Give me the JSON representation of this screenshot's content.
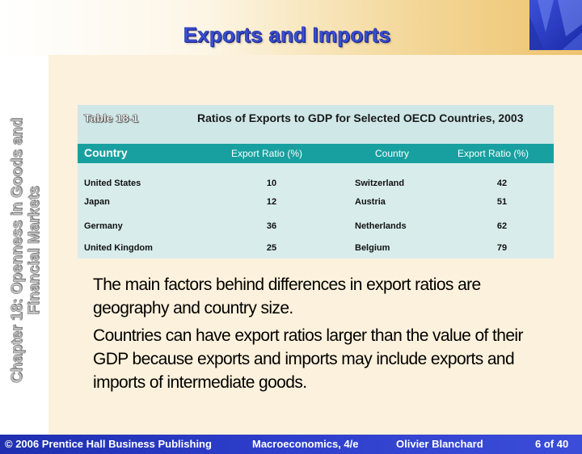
{
  "slide": {
    "title": "Exports and Imports",
    "side_title_line1": "Chapter 18: Openness in Goods and",
    "side_title_line2": "Financial Markets"
  },
  "table": {
    "label": "Table 18-1",
    "caption": "Ratios of Exports to GDP for Selected OECD Countries, 2003",
    "headers": [
      "Country",
      "Export Ratio (%)",
      "Country",
      "Export Ratio (%)"
    ],
    "rows": [
      {
        "country1": "United States",
        "ratio1": "10",
        "country2": "Switzerland",
        "ratio2": "42"
      },
      {
        "country1": "Japan",
        "ratio1": "12",
        "country2": "Austria",
        "ratio2": "51"
      },
      {
        "country1": "Germany",
        "ratio1": "36",
        "country2": "Netherlands",
        "ratio2": "62"
      },
      {
        "country1": "United Kingdom",
        "ratio1": "25",
        "country2": "Belgium",
        "ratio2": "79"
      }
    ]
  },
  "bullets": [
    "The main factors behind differences in export ratios are geography and country size.",
    "Countries can have export ratios larger than the value of their GDP because exports and imports may include exports and imports of intermediate goods."
  ],
  "footer": {
    "copyright": "© 2006 Prentice Hall Business Publishing",
    "book": "Macroeconomics, 4/e",
    "author": "Olivier Blanchard",
    "page": "6 of 40"
  },
  "colors": {
    "title": "#3a4fd0",
    "table_header": "#18a0a0",
    "table_bg": "#d8ecec",
    "panel_bg": "#fcf1dc",
    "footer_bg": "#2e3fcc"
  }
}
